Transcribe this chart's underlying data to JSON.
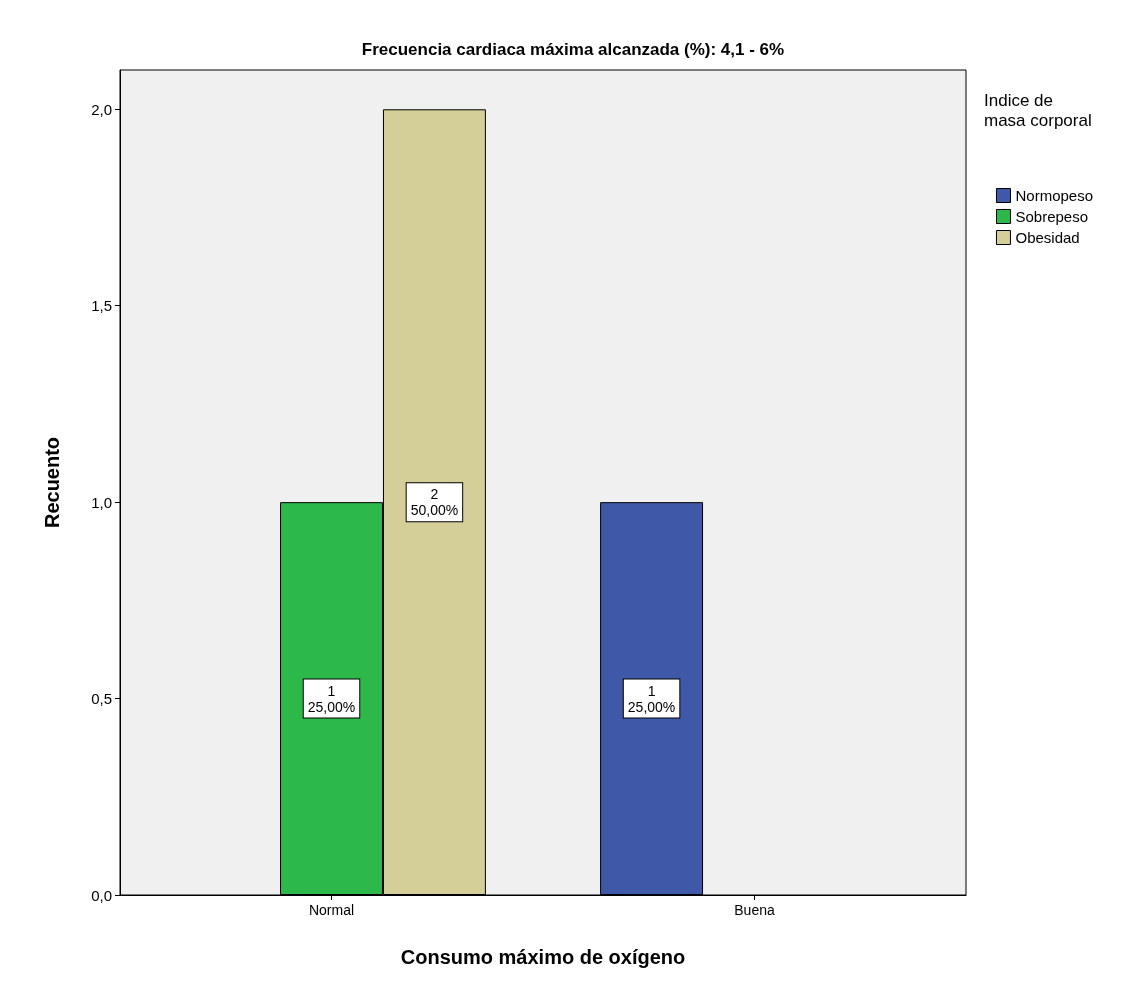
{
  "chart_data": {
    "type": "bar",
    "title": "Frecuencia cardiaca máxima alcanzada (%): 4,1 - 6%",
    "xlabel": "Consumo máximo de oxígeno",
    "ylabel": "Recuento",
    "legend_title": "Indice de masa corporal",
    "categories": [
      "Normal",
      "Buena"
    ],
    "series": [
      {
        "name": "Normopeso",
        "color": "#3f58a8",
        "values": [
          null,
          1
        ],
        "value_labels": [
          null,
          "1\n25,00%"
        ]
      },
      {
        "name": "Sobrepeso",
        "color": "#2db84a",
        "values": [
          1,
          null
        ],
        "value_labels": [
          "1\n25,00%",
          null
        ]
      },
      {
        "name": "Obesidad",
        "color": "#d4ce98",
        "values": [
          2,
          null
        ],
        "value_labels": [
          "2\n50,00%",
          null
        ]
      }
    ],
    "ylim": [
      0,
      2.1
    ],
    "yticks": [
      {
        "value": 0,
        "label": "0,0"
      },
      {
        "value": 0.5,
        "label": "0,5"
      },
      {
        "value": 1,
        "label": "1,0"
      },
      {
        "value": 1.5,
        "label": "1,5"
      },
      {
        "value": 2,
        "label": "2,0"
      }
    ],
    "grid": false,
    "legend": "right"
  }
}
